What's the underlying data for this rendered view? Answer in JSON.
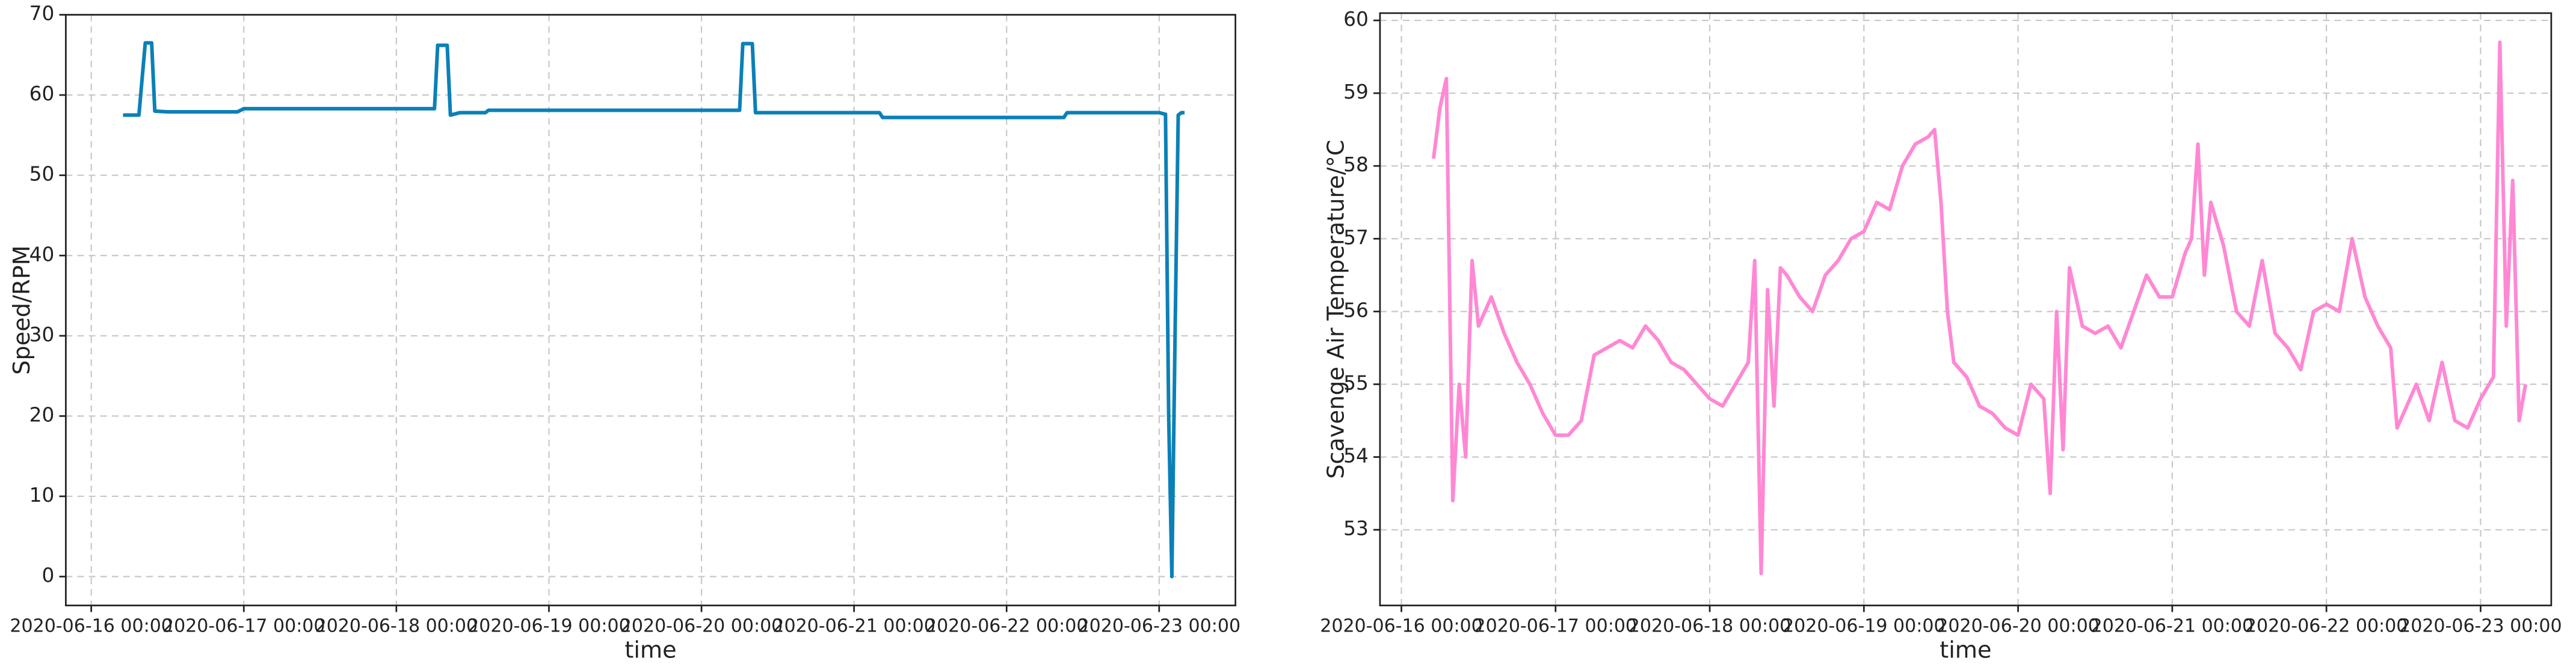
{
  "chart_data": [
    {
      "type": "line",
      "xlabel": "time",
      "ylabel": "Speed/RPM",
      "color": "#0b80b8",
      "x": [
        "2020-06-16 05:00",
        "2020-06-16 07:30",
        "2020-06-16 08:00",
        "2020-06-16 08:30",
        "2020-06-16 09:30",
        "2020-06-16 10:00",
        "2020-06-16 12:00",
        "2020-06-16 23:00",
        "2020-06-17 00:00",
        "2020-06-18 06:00",
        "2020-06-18 06:30",
        "2020-06-18 08:00",
        "2020-06-18 08:30",
        "2020-06-18 10:00",
        "2020-06-18 14:00",
        "2020-06-18 14:30",
        "2020-06-20 06:00",
        "2020-06-20 06:30",
        "2020-06-20 08:00",
        "2020-06-20 08:30",
        "2020-06-21 04:00",
        "2020-06-21 04:30",
        "2020-06-22 09:00",
        "2020-06-22 09:30",
        "2020-06-23 00:00",
        "2020-06-23 01:00",
        "2020-06-23 01:30",
        "2020-06-23 02:00",
        "2020-06-23 02:30",
        "2020-06-23 03:00",
        "2020-06-23 03:30",
        "2020-06-23 04:00"
      ],
      "values": [
        57.5,
        57.5,
        62,
        66.5,
        66.5,
        58,
        57.9,
        57.9,
        58.3,
        58.3,
        66.2,
        66.2,
        57.5,
        57.8,
        57.8,
        58.1,
        58.1,
        66.4,
        66.4,
        57.8,
        57.8,
        57.2,
        57.2,
        57.8,
        57.8,
        57.6,
        20,
        0,
        30,
        57.5,
        57.8,
        57.8
      ],
      "xlim": [
        "2020-06-15 20:00",
        "2020-06-23 12:00"
      ],
      "xticks": [
        "2020-06-16 00:00",
        "2020-06-17 00:00",
        "2020-06-18 00:00",
        "2020-06-19 00:00",
        "2020-06-20 00:00",
        "2020-06-21 00:00",
        "2020-06-22 00:00",
        "2020-06-23 00:00"
      ],
      "ylim": [
        -3.6,
        70
      ],
      "yticks": [
        0,
        10,
        20,
        30,
        40,
        50,
        60,
        70
      ],
      "grid": true
    },
    {
      "type": "line",
      "xlabel": "time",
      "ylabel": "Scavenge Air Temperature/°C",
      "color": "#ff88d4",
      "x": [
        "2020-06-16 05:00",
        "2020-06-16 06:00",
        "2020-06-16 07:00",
        "2020-06-16 08:00",
        "2020-06-16 09:00",
        "2020-06-16 10:00",
        "2020-06-16 11:00",
        "2020-06-16 12:00",
        "2020-06-16 14:00",
        "2020-06-16 16:00",
        "2020-06-16 18:00",
        "2020-06-16 20:00",
        "2020-06-16 22:00",
        "2020-06-17 00:00",
        "2020-06-17 02:00",
        "2020-06-17 04:00",
        "2020-06-17 06:00",
        "2020-06-17 08:00",
        "2020-06-17 10:00",
        "2020-06-17 12:00",
        "2020-06-17 14:00",
        "2020-06-17 16:00",
        "2020-06-17 18:00",
        "2020-06-17 20:00",
        "2020-06-17 22:00",
        "2020-06-18 00:00",
        "2020-06-18 02:00",
        "2020-06-18 04:00",
        "2020-06-18 06:00",
        "2020-06-18 07:00",
        "2020-06-18 08:00",
        "2020-06-18 09:00",
        "2020-06-18 10:00",
        "2020-06-18 11:00",
        "2020-06-18 12:00",
        "2020-06-18 14:00",
        "2020-06-18 16:00",
        "2020-06-18 18:00",
        "2020-06-18 20:00",
        "2020-06-18 22:00",
        "2020-06-19 00:00",
        "2020-06-19 02:00",
        "2020-06-19 04:00",
        "2020-06-19 06:00",
        "2020-06-19 08:00",
        "2020-06-19 10:00",
        "2020-06-19 11:00",
        "2020-06-19 12:00",
        "2020-06-19 13:00",
        "2020-06-19 14:00",
        "2020-06-19 16:00",
        "2020-06-19 18:00",
        "2020-06-19 20:00",
        "2020-06-19 22:00",
        "2020-06-20 00:00",
        "2020-06-20 02:00",
        "2020-06-20 04:00",
        "2020-06-20 05:00",
        "2020-06-20 06:00",
        "2020-06-20 07:00",
        "2020-06-20 08:00",
        "2020-06-20 10:00",
        "2020-06-20 12:00",
        "2020-06-20 14:00",
        "2020-06-20 16:00",
        "2020-06-20 18:00",
        "2020-06-20 20:00",
        "2020-06-20 22:00",
        "2020-06-21 00:00",
        "2020-06-21 02:00",
        "2020-06-21 03:00",
        "2020-06-21 04:00",
        "2020-06-21 05:00",
        "2020-06-21 06:00",
        "2020-06-21 08:00",
        "2020-06-21 10:00",
        "2020-06-21 12:00",
        "2020-06-21 14:00",
        "2020-06-21 16:00",
        "2020-06-21 18:00",
        "2020-06-21 20:00",
        "2020-06-21 22:00",
        "2020-06-22 00:00",
        "2020-06-22 02:00",
        "2020-06-22 04:00",
        "2020-06-22 06:00",
        "2020-06-22 08:00",
        "2020-06-22 10:00",
        "2020-06-22 11:00",
        "2020-06-22 12:00",
        "2020-06-22 14:00",
        "2020-06-22 16:00",
        "2020-06-22 18:00",
        "2020-06-22 20:00",
        "2020-06-22 22:00",
        "2020-06-23 00:00",
        "2020-06-23 02:00",
        "2020-06-23 03:00",
        "2020-06-23 04:00",
        "2020-06-23 05:00",
        "2020-06-23 06:00",
        "2020-06-23 07:00"
      ],
      "values": [
        58.1,
        58.8,
        59.2,
        53.4,
        55,
        54,
        56.7,
        55.8,
        56.2,
        55.7,
        55.3,
        55,
        54.6,
        54.3,
        54.3,
        54.5,
        55.4,
        55.5,
        55.6,
        55.5,
        55.8,
        55.6,
        55.3,
        55.2,
        55,
        54.8,
        54.7,
        55,
        55.3,
        56.7,
        52.4,
        56.3,
        54.7,
        56.6,
        56.5,
        56.2,
        56,
        56.5,
        56.7,
        57,
        57.1,
        57.5,
        57.4,
        58,
        58.3,
        58.4,
        58.5,
        57.5,
        56,
        55.3,
        55.1,
        54.7,
        54.6,
        54.4,
        54.3,
        55,
        54.8,
        53.5,
        56,
        54.1,
        56.6,
        55.8,
        55.7,
        55.8,
        55.5,
        56,
        56.5,
        56.2,
        56.2,
        56.8,
        57,
        58.3,
        56.5,
        57.5,
        56.9,
        56,
        55.8,
        56.7,
        55.7,
        55.5,
        55.2,
        56,
        56.1,
        56,
        57,
        56.2,
        55.8,
        55.5,
        54.4,
        54.6,
        55,
        54.5,
        55.3,
        54.5,
        54.4,
        54.8,
        55.1,
        59.7,
        55.8,
        57.8,
        54.5,
        55
      ],
      "xlim": [
        "2020-06-15 20:40",
        "2020-06-23 11:00"
      ],
      "xticks": [
        "2020-06-16 00:00",
        "2020-06-17 00:00",
        "2020-06-18 00:00",
        "2020-06-19 00:00",
        "2020-06-20 00:00",
        "2020-06-21 00:00",
        "2020-06-22 00:00",
        "2020-06-23 00:00"
      ],
      "ylim": [
        51.96,
        60.1
      ],
      "yticks": [
        53,
        54,
        55,
        56,
        57,
        58,
        59,
        60
      ],
      "grid": true
    }
  ]
}
